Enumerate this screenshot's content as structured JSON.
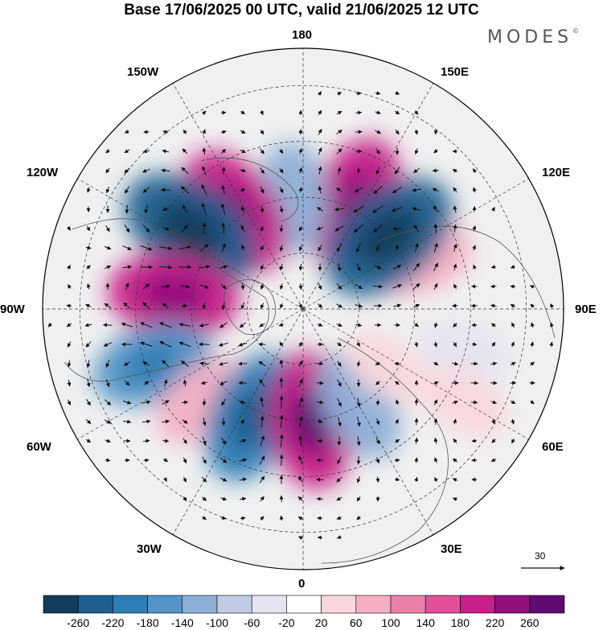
{
  "title": "Base 17/06/2025 00 UTC, valid 21/06/2025 12 UTC",
  "brand": "MODES",
  "brand_mark": "©",
  "longitude_labels": {
    "n180": "180",
    "w150": "150W",
    "e150": "150E",
    "w120": "120W",
    "e120": "120E",
    "w90": "90W",
    "e90": "90E",
    "w60": "60W",
    "e60": "60E",
    "w30": "30W",
    "e30": "30E",
    "s0": "0"
  },
  "reference_vector": {
    "label": "30"
  },
  "colorbar": {
    "ticks": [
      "-260",
      "-220",
      "-180",
      "-140",
      "-100",
      "-60",
      "-20",
      "20",
      "60",
      "100",
      "140",
      "180",
      "220",
      "260"
    ],
    "colors": [
      "#143c5c",
      "#1f5f8f",
      "#2e7db6",
      "#5495c6",
      "#8eb0d6",
      "#c1cbe3",
      "#e6e4f0",
      "#ffffff",
      "#fad7dc",
      "#f4afc3",
      "#eb80aa",
      "#e2509a",
      "#c61f88",
      "#92107c",
      "#5f0a70"
    ]
  },
  "anomaly_features": [
    {
      "lon": 155,
      "lat": 58,
      "value": 180
    },
    {
      "lon": 185,
      "lat": 60,
      "value": -110
    },
    {
      "lon": 215,
      "lat": 58,
      "value": 190
    },
    {
      "lon": 235,
      "lat": 53,
      "value": -230
    },
    {
      "lon": 264,
      "lat": 55,
      "value": 180
    },
    {
      "lon": 290,
      "lat": 47,
      "value": -150
    },
    {
      "lon": 312,
      "lat": 53,
      "value": 80
    },
    {
      "lon": 335,
      "lat": 58,
      "value": -190
    },
    {
      "lon": 5,
      "lat": 60,
      "value": 200
    },
    {
      "lon": 30,
      "lat": 60,
      "value": -120
    },
    {
      "lon": 55,
      "lat": 63,
      "value": 40
    },
    {
      "lon": 75,
      "lat": 45,
      "value": -60
    },
    {
      "lon": 112,
      "lat": 55,
      "value": 70
    },
    {
      "lon": 130,
      "lat": 60,
      "value": -230
    },
    {
      "lon": 60,
      "lat": 40,
      "value": 50
    }
  ]
}
